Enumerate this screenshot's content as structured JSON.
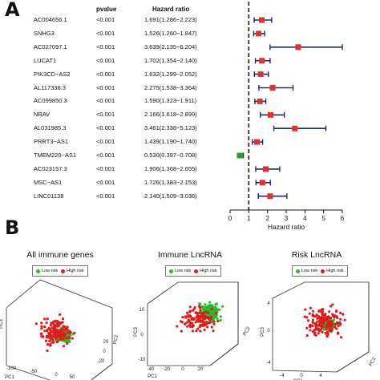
{
  "panel_a": {
    "letter": "A",
    "headers": {
      "pvalue": "pvalue",
      "hazard": "Hazard ratio"
    },
    "rows": [
      {
        "gene": "AC004656.1",
        "pvalue": "<0.001",
        "hr_text": "1.691(1.286−2.223)"
      },
      {
        "gene": "SNHG3",
        "pvalue": "<0.001",
        "hr_text": "1.526(1.260−1.847)"
      },
      {
        "gene": "AC027097.1",
        "pvalue": "<0.001",
        "hr_text": "3.639(2.135−6.204)"
      },
      {
        "gene": "LUCAT1",
        "pvalue": "<0.001",
        "hr_text": "1.702(1.354−2.140)"
      },
      {
        "gene": "PIK3CD−AS2",
        "pvalue": "<0.001",
        "hr_text": "1.632(1.299−2.052)"
      },
      {
        "gene": "AL117336.3",
        "pvalue": "<0.001",
        "hr_text": "2.275(1.538−3.364)"
      },
      {
        "gene": "AC099850.3",
        "pvalue": "<0.001",
        "hr_text": "1.590(1.323−1.911)"
      },
      {
        "gene": "NRAV",
        "pvalue": "<0.001",
        "hr_text": "2.166(1.618−2.899)"
      },
      {
        "gene": "AL031985.3",
        "pvalue": "<0.001",
        "hr_text": "3.461(2.338−5.123)"
      },
      {
        "gene": "PRRT3−AS1",
        "pvalue": "<0.001",
        "hr_text": "1.439(1.190−1.740)"
      },
      {
        "gene": "TMEM220−AS1",
        "pvalue": "<0.001",
        "hr_text": "0.530(0.397−0.708)"
      },
      {
        "gene": "AC023157.3",
        "pvalue": "<0.001",
        "hr_text": "1.906(1.368−2.655)"
      },
      {
        "gene": "MSC−AS1",
        "pvalue": "<0.001",
        "hr_text": "1.726(1.383−2.153)"
      },
      {
        "gene": "LINC01138",
        "pvalue": "<0.001",
        "hr_text": "2.140(1.509−3.036)"
      }
    ]
  },
  "chart_data": [
    {
      "type": "forest",
      "xlabel": "Hazard ratio",
      "xlim": [
        0,
        6
      ],
      "xticks": [
        "0",
        "1",
        "2",
        "3",
        "4",
        "5",
        "6"
      ],
      "reference_line": 1,
      "colors": {
        "risk": "#e03030",
        "protective": "#2f9e2f",
        "ci": "#1f2a66"
      },
      "points": [
        {
          "label": "AC004656.1",
          "hr": 1.691,
          "lo": 1.286,
          "hi": 2.223
        },
        {
          "label": "SNHG3",
          "hr": 1.526,
          "lo": 1.26,
          "hi": 1.847
        },
        {
          "label": "AC027097.1",
          "hr": 3.639,
          "lo": 2.135,
          "hi": 6.204
        },
        {
          "label": "LUCAT1",
          "hr": 1.702,
          "lo": 1.354,
          "hi": 2.14
        },
        {
          "label": "PIK3CD−AS2",
          "hr": 1.632,
          "lo": 1.299,
          "hi": 2.052
        },
        {
          "label": "AL117336.3",
          "hr": 2.275,
          "lo": 1.538,
          "hi": 3.364
        },
        {
          "label": "AC099850.3",
          "hr": 1.59,
          "lo": 1.323,
          "hi": 1.911
        },
        {
          "label": "NRAV",
          "hr": 2.166,
          "lo": 1.618,
          "hi": 2.899
        },
        {
          "label": "AL031985.3",
          "hr": 3.461,
          "lo": 2.338,
          "hi": 5.123
        },
        {
          "label": "PRRT3−AS1",
          "hr": 1.439,
          "lo": 1.19,
          "hi": 1.74
        },
        {
          "label": "TMEM220−AS1",
          "hr": 0.53,
          "lo": 0.397,
          "hi": 0.708
        },
        {
          "label": "AC023157.3",
          "hr": 1.906,
          "lo": 1.368,
          "hi": 2.655
        },
        {
          "label": "MSC−AS1",
          "hr": 1.726,
          "lo": 1.383,
          "hi": 2.153
        },
        {
          "label": "LINC01138",
          "hr": 2.14,
          "lo": 1.509,
          "hi": 3.036
        }
      ]
    },
    {
      "type": "scatter",
      "title": "All immune genes",
      "legend": [
        "Low risk",
        "High risk"
      ],
      "colors": {
        "low": "#2db82d",
        "high": "#dd1c1c"
      },
      "xlabel": "PC1",
      "ylabel": "PC2",
      "zlabel": "PC3",
      "x_ticks": [
        "-100",
        "-50",
        "0",
        "50"
      ],
      "y_ticks": [
        "-20",
        "-10",
        "0",
        "10",
        "20"
      ],
      "z_ticks": [
        "-20",
        "0",
        "20"
      ]
    },
    {
      "type": "scatter",
      "title": "Immune LncRNA",
      "legend": [
        "Low risk",
        "High risk"
      ],
      "colors": {
        "low": "#2db82d",
        "high": "#dd1c1c"
      },
      "xlabel": "PC1",
      "ylabel": "PC3",
      "zlabel": "PC2",
      "x_ticks": [
        "-40",
        "-30",
        "-20",
        "-10",
        "0",
        "10",
        "20"
      ],
      "y_ticks": [
        "-10",
        "-5",
        "0",
        "5",
        "10"
      ],
      "z_ticks": [
        "-10",
        "-5",
        "0",
        "5",
        "10"
      ]
    },
    {
      "type": "scatter",
      "title": "Risk LncRNA",
      "legend": [
        "Low risk",
        "High risk"
      ],
      "colors": {
        "low": "#2db82d",
        "high": "#dd1c1c"
      },
      "xlabel": "PC1",
      "ylabel": "PC2",
      "zlabel": "PC3",
      "x_ticks": [
        "-6",
        "-4",
        "-2",
        "0",
        "2",
        "4",
        "6"
      ],
      "y_ticks": [
        "-4",
        "-2",
        "0",
        "2",
        "4"
      ],
      "z_ticks": [
        "-4",
        "-2",
        "0",
        "2",
        "4"
      ]
    }
  ],
  "panel_b": {
    "letter": "B"
  }
}
